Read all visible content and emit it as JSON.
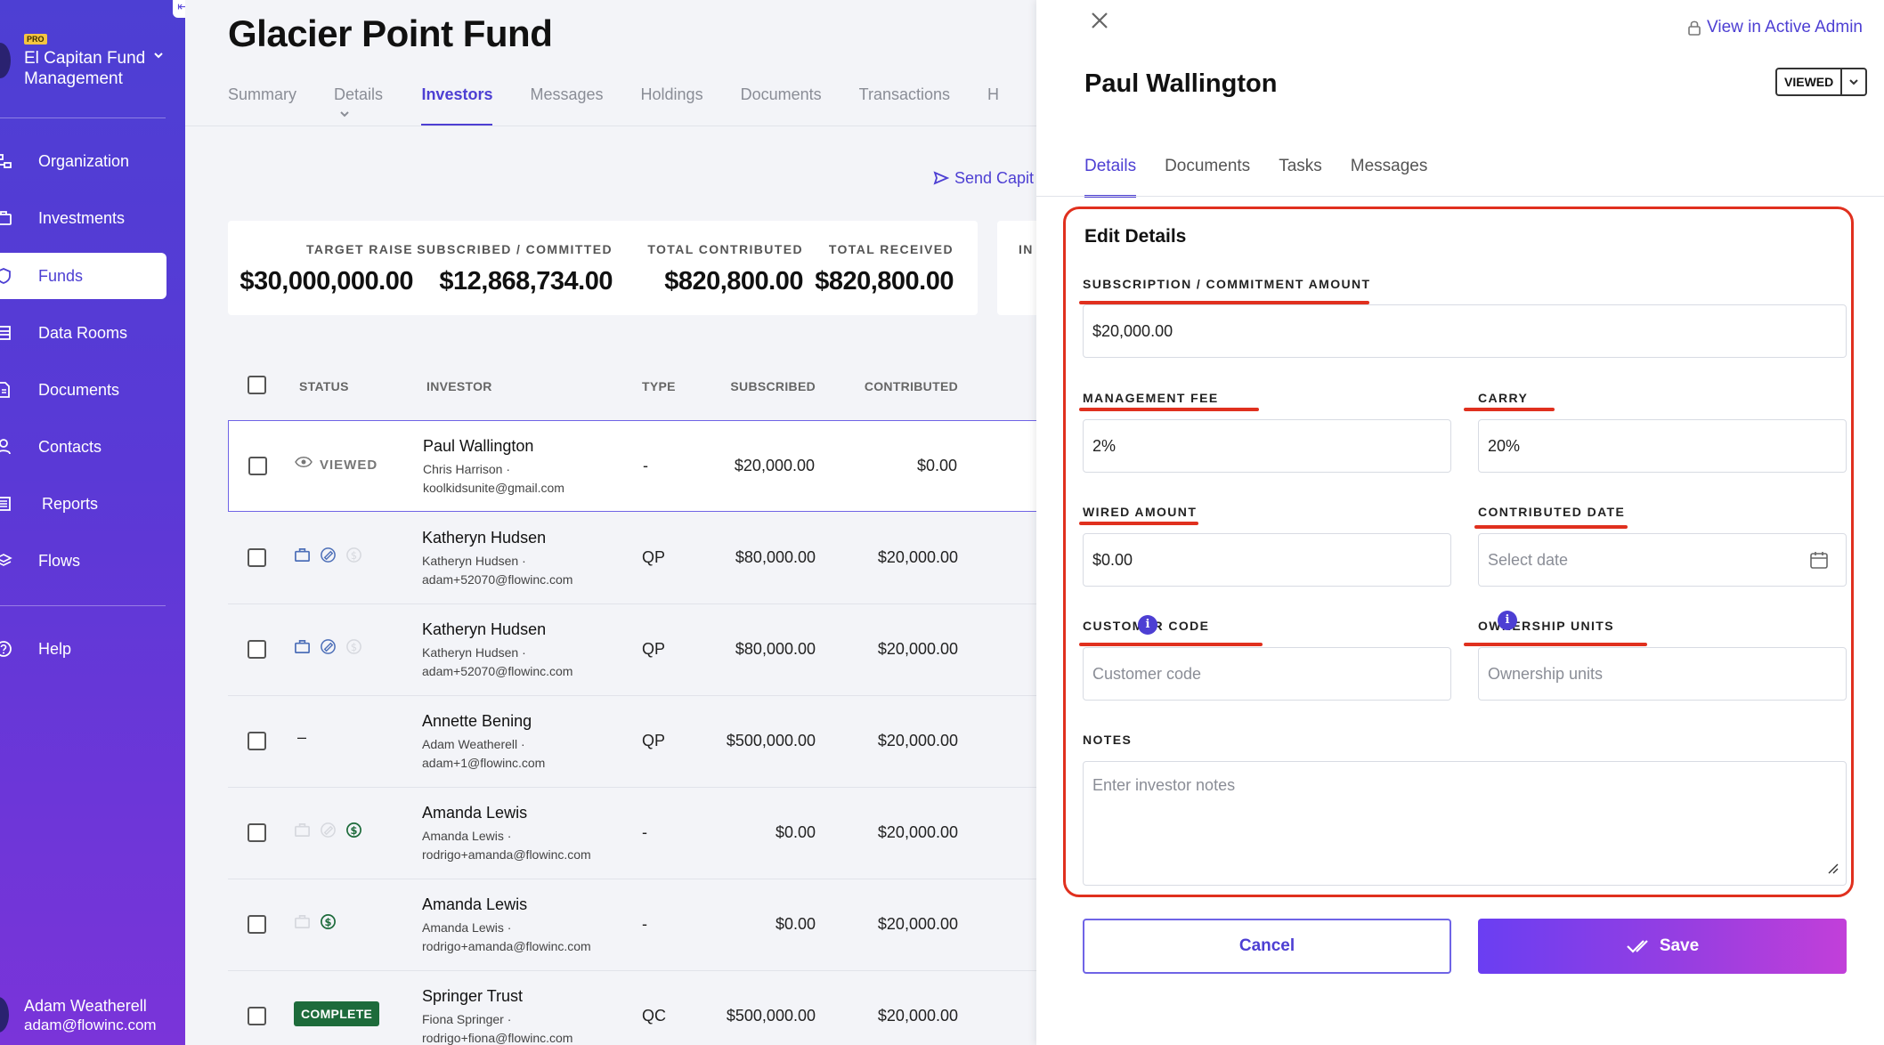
{
  "sidebar": {
    "org": {
      "badge": "PRO",
      "name": "El Capitan Fund Management"
    },
    "items": [
      {
        "label": "Organization",
        "icon": "organization-icon"
      },
      {
        "label": "Investments",
        "icon": "briefcase-icon"
      },
      {
        "label": "Funds",
        "icon": "shield-icon",
        "active": true
      },
      {
        "label": "Data Rooms",
        "icon": "data-room-icon"
      },
      {
        "label": "Documents",
        "icon": "document-icon"
      },
      {
        "label": "Contacts",
        "icon": "person-icon"
      },
      {
        "label": "Reports",
        "icon": "report-icon"
      },
      {
        "label": "Flows",
        "icon": "layers-icon"
      },
      {
        "label": "Help",
        "icon": "help-icon"
      }
    ],
    "user": {
      "name": "Adam Weatherell",
      "email": "adam@flowinc.com"
    }
  },
  "main": {
    "title": "Glacier Point Fund",
    "tabs": [
      "Summary",
      "Details",
      "Investors",
      "Messages",
      "Holdings",
      "Documents",
      "Transactions",
      "H"
    ],
    "active_tab": "Investors",
    "send_link": "Send Capit",
    "stats": [
      {
        "label": "TARGET RAISE",
        "value": "$30,000,000.00"
      },
      {
        "label": "SUBSCRIBED / COMMITTED",
        "value": "$12,868,734.00"
      },
      {
        "label": "TOTAL CONTRIBUTED",
        "value": "$820,800.00"
      },
      {
        "label": "TOTAL RECEIVED",
        "value": "$820,800.00"
      }
    ],
    "stats_extra_label": "IN",
    "table": {
      "headers": {
        "status": "STATUS",
        "investor": "INVESTOR",
        "type": "TYPE",
        "subscribed": "SUBSCRIBED",
        "contributed": "CONTRIBUTED"
      },
      "rows": [
        {
          "status": "VIEWED",
          "name": "Paul Wallington",
          "contact": "Chris Harrison ·",
          "email": "koolkidsunite@gmail.com",
          "type": "-",
          "subscribed": "$20,000.00",
          "contributed": "$0.00"
        },
        {
          "status": "",
          "name": "Katheryn Hudsen",
          "contact": "Katheryn Hudsen ·",
          "email": "adam+52070@flowinc.com",
          "type": "QP",
          "subscribed": "$80,000.00",
          "contributed": "$20,000.00"
        },
        {
          "status": "",
          "name": "Katheryn Hudsen",
          "contact": "Katheryn Hudsen ·",
          "email": "adam+52070@flowinc.com",
          "type": "QP",
          "subscribed": "$80,000.00",
          "contributed": "$20,000.00"
        },
        {
          "status": "–",
          "name": "Annette Bening",
          "contact": "Adam Weatherell ·",
          "email": "adam+1@flowinc.com",
          "type": "QP",
          "subscribed": "$500,000.00",
          "contributed": "$20,000.00"
        },
        {
          "status": "",
          "name": "Amanda Lewis",
          "contact": "Amanda Lewis ·",
          "email": "rodrigo+amanda@flowinc.com",
          "type": "-",
          "subscribed": "$0.00",
          "contributed": "$20,000.00"
        },
        {
          "status": "",
          "name": "Amanda Lewis",
          "contact": "Amanda Lewis ·",
          "email": "rodrigo+amanda@flowinc.com",
          "type": "-",
          "subscribed": "$0.00",
          "contributed": "$20,000.00"
        },
        {
          "status": "COMPLETE",
          "name": "Springer Trust",
          "contact": "Fiona Springer ·",
          "email": "rodrigo+fiona@flowinc.com",
          "type": "QC",
          "subscribed": "$500,000.00",
          "contributed": "$20,000.00"
        }
      ]
    }
  },
  "panel": {
    "admin_link": "View in Active Admin",
    "title": "Paul Wallington",
    "status": "VIEWED",
    "tabs": [
      "Details",
      "Documents",
      "Tasks",
      "Messages"
    ],
    "active_tab": "Details",
    "form": {
      "heading": "Edit Details",
      "subscription": {
        "label": "SUBSCRIPTION / COMMITMENT AMOUNT",
        "value": "$20,000.00"
      },
      "management_fee": {
        "label": "MANAGEMENT FEE",
        "value": "2%"
      },
      "carry": {
        "label": "CARRY",
        "value": "20%"
      },
      "wired_amount": {
        "label": "WIRED AMOUNT",
        "value": "$0.00"
      },
      "contributed_date": {
        "label": "CONTRIBUTED DATE",
        "placeholder": "Select date"
      },
      "customer_code": {
        "label": "CUSTOMER CODE",
        "placeholder": "Customer code"
      },
      "ownership_units": {
        "label": "OWNERSHIP UNITS",
        "placeholder": "Ownership units"
      },
      "notes": {
        "label": "NOTES",
        "placeholder": "Enter investor notes"
      }
    },
    "cancel_label": "Cancel",
    "save_label": "Save"
  },
  "colors": {
    "accent": "#4d3fd3",
    "highlight": "#e0301e",
    "complete_badge": "#1d6b3b"
  }
}
